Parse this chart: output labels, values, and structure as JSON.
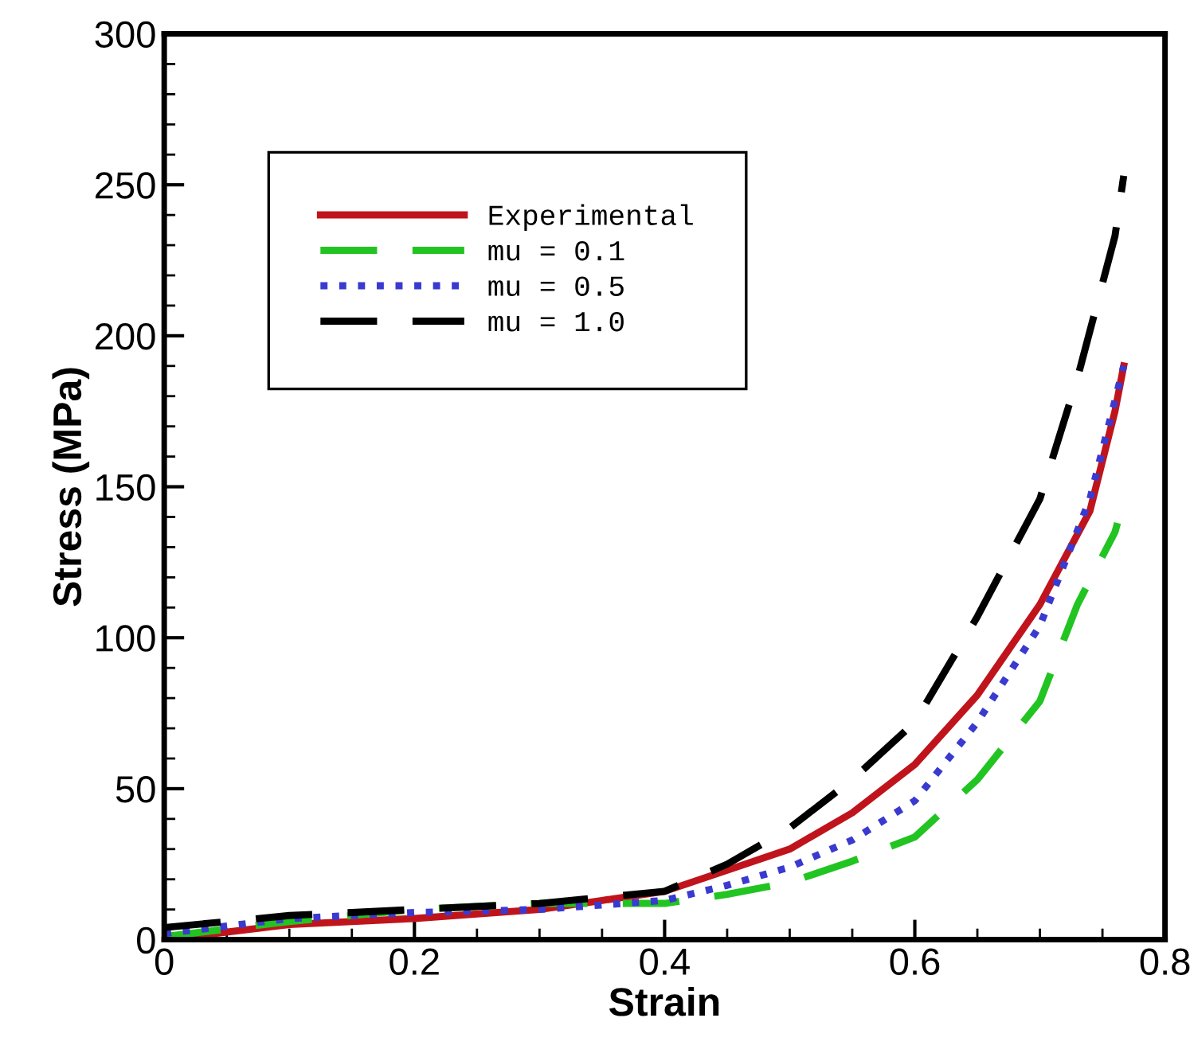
{
  "chart_data": {
    "type": "line",
    "xlabel": "Strain",
    "ylabel": "Stress (MPa)",
    "xlim": [
      0,
      0.8
    ],
    "ylim": [
      0,
      300
    ],
    "xticks": [
      0,
      0.2,
      0.4,
      0.6,
      0.8
    ],
    "yticks": [
      0,
      50,
      100,
      150,
      200,
      250,
      300
    ],
    "grid": false,
    "legend": "top left",
    "marker": "none",
    "series": [
      {
        "name": "Experimental",
        "color": "#c0141c",
        "line_style": "solid",
        "x": [
          0,
          0.1,
          0.2,
          0.3,
          0.35,
          0.4,
          0.45,
          0.5,
          0.55,
          0.6,
          0.65,
          0.7,
          0.74,
          0.76,
          0.767
        ],
        "values": [
          0,
          5,
          7,
          10,
          13,
          16,
          23,
          30,
          42,
          58,
          81,
          111,
          142,
          175,
          190
        ]
      },
      {
        "name": "mu = 0.1",
        "color": "#22c422",
        "line_style": "dashed",
        "x": [
          0,
          0.1,
          0.2,
          0.3,
          0.4,
          0.45,
          0.5,
          0.55,
          0.6,
          0.65,
          0.7,
          0.73,
          0.76,
          0.762
        ],
        "values": [
          1,
          6,
          10,
          12,
          12,
          15,
          19,
          26,
          34,
          53,
          79,
          111,
          135,
          138
        ]
      },
      {
        "name": "mu = 0.5",
        "color": "#3a3ad0",
        "line_style": "dotted",
        "x": [
          0,
          0.1,
          0.2,
          0.3,
          0.4,
          0.45,
          0.5,
          0.55,
          0.6,
          0.65,
          0.7,
          0.74,
          0.767
        ],
        "values": [
          2,
          7,
          9,
          10,
          13,
          18,
          24,
          33,
          46,
          72,
          104,
          146,
          190
        ]
      },
      {
        "name": "mu = 1.0",
        "color": "#000000",
        "line_style": "dashed",
        "x": [
          0,
          0.1,
          0.2,
          0.3,
          0.4,
          0.45,
          0.5,
          0.55,
          0.6,
          0.65,
          0.7,
          0.73,
          0.76,
          0.767
        ],
        "values": [
          4,
          8,
          10,
          12,
          16,
          25,
          37,
          53,
          72,
          107,
          146,
          186,
          233,
          253
        ]
      }
    ]
  }
}
